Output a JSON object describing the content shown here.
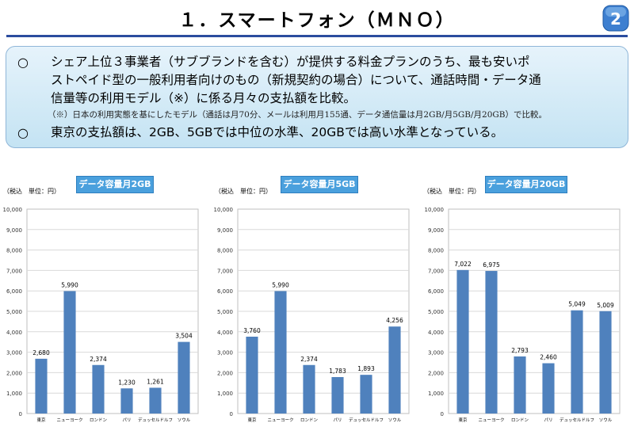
{
  "page": {
    "title": "１．スマートフォン（ＭＮＯ）",
    "badge": "2"
  },
  "summary": {
    "bullet_mark": "○",
    "bullet1_line1": "シェア上位３事業者（サブブランドを含む）が提供する料金プランのうち、最も安いポ",
    "bullet1_line2": "ストペイド型の一般利用者向けのもの（新規契約の場合）について、通話時間・データ通",
    "bullet1_line3": "信量等の利用モデル（※）に係る月々の支払額を比較。",
    "note": "（※）日本の利用実態を基にしたモデル（通話は月70分、メールは利用月155通、データ通信量は月2GB/月5GB/月20GB）で比較。",
    "bullet2": "東京の支払額は、2GB、5GBでは中位の水準、20GBでは高い水準となっている。"
  },
  "colors": {
    "bar": "#4f81bd",
    "tag": "#4aa0dd",
    "accent": "#2b4c9e",
    "grid": "#d9d9d9"
  },
  "chart_data": [
    {
      "type": "bar",
      "title": "データ容量月2GB",
      "units": "（税込　単位：円）",
      "categories": [
        "東京",
        "ニューヨーク",
        "ロンドン",
        "パリ",
        "デュッセルドルフ",
        "ソウル"
      ],
      "values": [
        2680,
        5990,
        2374,
        1230,
        1261,
        3504
      ],
      "data_labels": [
        "2,680",
        "5,990",
        "2,374",
        "1,230",
        "1,261",
        "3,504"
      ],
      "yticks": [
        "0",
        "1,000",
        "2,000",
        "3,000",
        "4,000",
        "5,000",
        "6,000",
        "7,000",
        "8,000",
        "9,000",
        "10,000"
      ],
      "ylim": [
        0,
        10000
      ],
      "grid": true,
      "legend": "none"
    },
    {
      "type": "bar",
      "title": "データ容量月5GB",
      "units": "（税込　単位：円）",
      "categories": [
        "東京",
        "ニューヨーク",
        "ロンドン",
        "パリ",
        "デュッセルドルフ",
        "ソウル"
      ],
      "values": [
        3760,
        5990,
        2374,
        1783,
        1893,
        4256
      ],
      "data_labels": [
        "3,760",
        "5,990",
        "2,374",
        "1,783",
        "1,893",
        "4,256"
      ],
      "yticks": [
        "0",
        "1,000",
        "2,000",
        "3,000",
        "4,000",
        "5,000",
        "6,000",
        "7,000",
        "8,000",
        "9,000",
        "10,000"
      ],
      "ylim": [
        0,
        10000
      ],
      "grid": true,
      "legend": "none"
    },
    {
      "type": "bar",
      "title": "データ容量月20GB",
      "units": "（税込　単位：円）",
      "categories": [
        "東京",
        "ニューヨーク",
        "ロンドン",
        "パリ",
        "デュッセルドルフ",
        "ソウル"
      ],
      "values": [
        7022,
        6975,
        2793,
        2460,
        5049,
        5009
      ],
      "data_labels": [
        "7,022",
        "6,975",
        "2,793",
        "2,460",
        "5,049",
        "5,009"
      ],
      "yticks": [
        "0",
        "1,000",
        "2,000",
        "3,000",
        "4,000",
        "5,000",
        "6,000",
        "7,000",
        "8,000",
        "9,000",
        "10,000"
      ],
      "ylim": [
        0,
        10000
      ],
      "grid": true,
      "legend": "none"
    }
  ]
}
